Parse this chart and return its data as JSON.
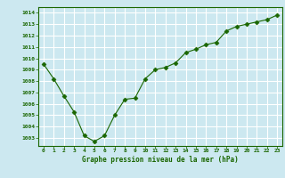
{
  "x": [
    0,
    1,
    2,
    3,
    4,
    5,
    6,
    7,
    8,
    9,
    10,
    11,
    12,
    13,
    14,
    15,
    16,
    17,
    18,
    19,
    20,
    21,
    22,
    23
  ],
  "y": [
    1009.5,
    1008.2,
    1006.7,
    1005.3,
    1003.2,
    1002.7,
    1003.2,
    1005.0,
    1006.4,
    1006.5,
    1008.2,
    1009.0,
    1009.2,
    1009.6,
    1010.5,
    1010.8,
    1011.2,
    1011.4,
    1012.4,
    1012.8,
    1013.0,
    1013.2,
    1013.4,
    1013.8
  ],
  "line_color": "#1a6600",
  "marker_color": "#1a6600",
  "bg_color": "#cce8f0",
  "grid_color": "#ffffff",
  "xlabel": "Graphe pression niveau de la mer (hPa)",
  "xlabel_color": "#1a6600",
  "tick_color": "#1a6600",
  "ylim": [
    1002.3,
    1014.5
  ],
  "yticks": [
    1003,
    1004,
    1005,
    1006,
    1007,
    1008,
    1009,
    1010,
    1011,
    1012,
    1013,
    1014
  ],
  "xlim": [
    -0.5,
    23.5
  ],
  "xticks": [
    0,
    1,
    2,
    3,
    4,
    5,
    6,
    7,
    8,
    9,
    10,
    11,
    12,
    13,
    14,
    15,
    16,
    17,
    18,
    19,
    20,
    21,
    22,
    23
  ]
}
